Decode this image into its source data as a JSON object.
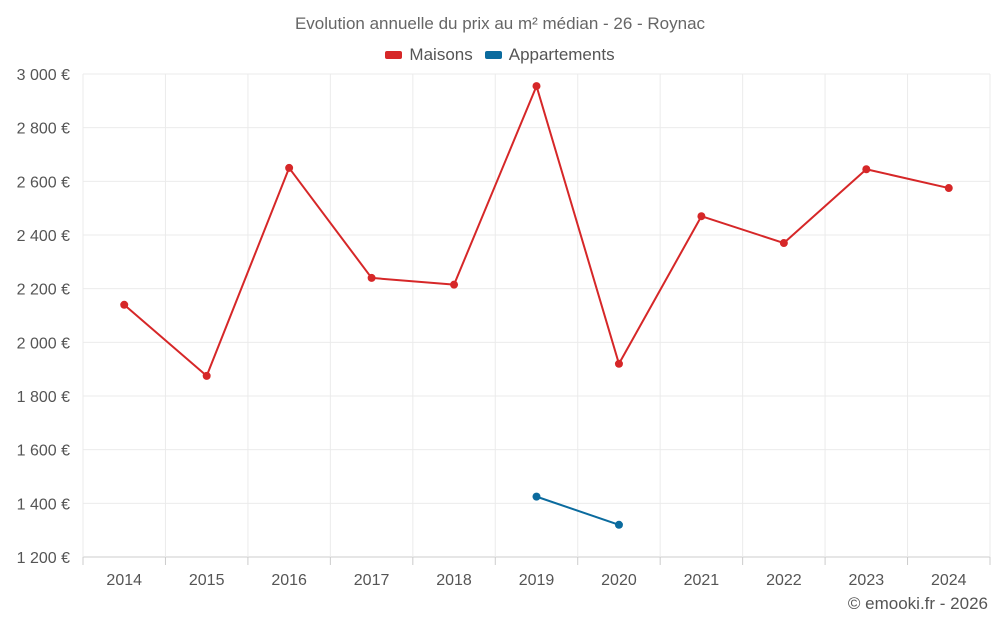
{
  "chart_data": {
    "type": "line",
    "title": "Evolution annuelle du prix au m² médian - 26 - Roynac",
    "categories": [
      "2014",
      "2015",
      "2016",
      "2017",
      "2018",
      "2019",
      "2020",
      "2021",
      "2022",
      "2023",
      "2024"
    ],
    "series": [
      {
        "name": "Maisons",
        "color": "#d62728",
        "values": [
          2140,
          1875,
          2650,
          2240,
          2215,
          2955,
          1920,
          2470,
          2370,
          2645,
          2575
        ]
      },
      {
        "name": "Appartements",
        "color": "#0b6b9e",
        "values": [
          null,
          null,
          null,
          null,
          null,
          1425,
          1320,
          null,
          null,
          null,
          null
        ]
      }
    ],
    "ylim": [
      1200,
      3000
    ],
    "yticks": [
      1200,
      1400,
      1600,
      1800,
      2000,
      2200,
      2400,
      2600,
      2800,
      3000
    ],
    "ytick_labels": [
      "1 200 €",
      "1 400 €",
      "1 600 €",
      "1 800 €",
      "2 000 €",
      "2 200 €",
      "2 400 €",
      "2 600 €",
      "2 800 €",
      "3 000 €"
    ],
    "grid": true,
    "legend_position": "top-center"
  },
  "credit": "© emooki.fr - 2026"
}
